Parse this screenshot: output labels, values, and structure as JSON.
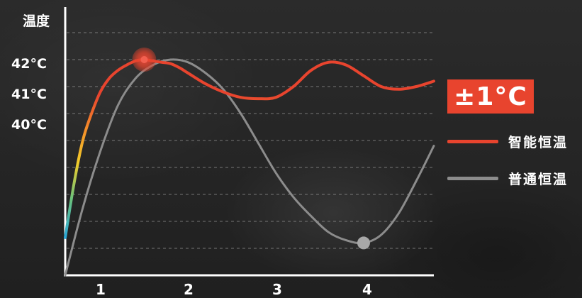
{
  "chart_data": {
    "type": "line",
    "ylabel": "温度",
    "y_ticks": [
      {
        "value": 40,
        "label": "40°C"
      },
      {
        "value": 41,
        "label": "41°C"
      },
      {
        "value": 42,
        "label": "42°C"
      }
    ],
    "x_ticks": [
      "1",
      "2",
      "3",
      "4"
    ],
    "xlim": [
      0.6,
      4.8
    ],
    "ylim": [
      34,
      44
    ],
    "grid": true,
    "annotation": "±1°C",
    "series": [
      {
        "name": "智能恒温",
        "color": "#e8442e",
        "x": [
          0.6,
          0.7,
          0.8,
          0.9,
          1.0,
          1.1,
          1.2,
          1.3,
          1.4,
          1.5,
          1.6,
          1.7,
          1.8,
          1.9,
          2.0,
          2.2,
          2.4,
          2.6,
          2.8,
          3.0,
          3.2,
          3.4,
          3.6,
          3.8,
          4.0,
          4.2,
          4.4,
          4.6,
          4.8
        ],
        "values": [
          35.4,
          37.4,
          39.0,
          40.0,
          40.8,
          41.3,
          41.6,
          41.8,
          41.95,
          42.0,
          41.95,
          41.9,
          41.85,
          41.7,
          41.5,
          41.1,
          40.8,
          40.6,
          40.55,
          40.6,
          41.0,
          41.6,
          41.9,
          41.8,
          41.4,
          41.0,
          40.9,
          41.0,
          41.2
        ]
      },
      {
        "name": "普通恒温",
        "color": "#8c8c8c",
        "x": [
          0.6,
          0.8,
          1.0,
          1.2,
          1.4,
          1.6,
          1.8,
          2.0,
          2.2,
          2.4,
          2.6,
          2.8,
          3.0,
          3.2,
          3.4,
          3.6,
          3.8,
          4.0,
          4.2,
          4.4,
          4.6,
          4.8
        ],
        "values": [
          34.0,
          36.5,
          38.6,
          40.3,
          41.3,
          41.8,
          42.0,
          41.9,
          41.5,
          40.9,
          40.0,
          38.9,
          37.8,
          36.9,
          36.2,
          35.6,
          35.3,
          35.2,
          35.5,
          36.3,
          37.5,
          38.8
        ]
      }
    ],
    "markers": [
      {
        "series": "智能恒温",
        "x": 1.5,
        "y": 42.0,
        "color": "#e8442e"
      },
      {
        "series": "普通恒温",
        "x": 4.0,
        "y": 35.2,
        "color": "#a8a8a8"
      }
    ]
  }
}
